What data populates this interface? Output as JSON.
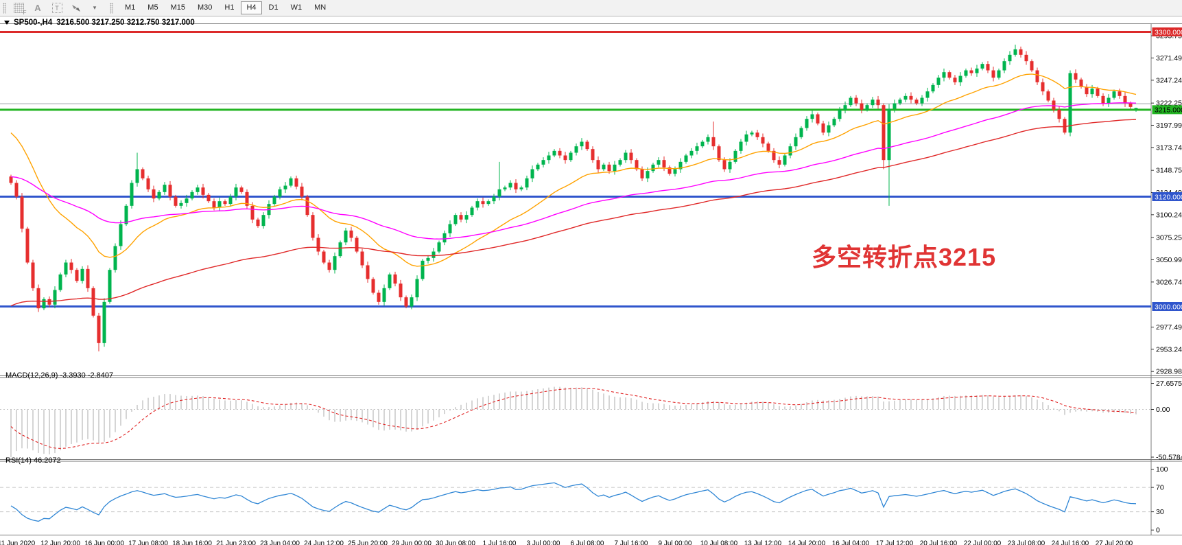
{
  "toolbar": {
    "icons": [
      {
        "name": "template-grid-icon",
        "letter": "F"
      },
      {
        "name": "font-icon",
        "letter": "A"
      },
      {
        "name": "text-label-icon",
        "letter": "T"
      },
      {
        "name": "cursor-arrows-icon",
        "letter": ""
      },
      {
        "name": "dropdown-arrow-icon",
        "letter": "▾"
      }
    ],
    "timeframes": [
      "M1",
      "M5",
      "M15",
      "M30",
      "H1",
      "H4",
      "D1",
      "W1",
      "MN"
    ],
    "active_timeframe": "H4"
  },
  "chart": {
    "symbol_timeframe": "SP500-,H4",
    "ohlc_text": "3216.500 3217.250 3212.750 3217.000",
    "annotation": {
      "text": "多空转折点3215",
      "color": "#e03434"
    }
  },
  "macd": {
    "label": "MACD(12,26,9) -3.3930 -2.8407"
  },
  "rsi": {
    "label": "RSI(14) 46.2072"
  },
  "chart_data": {
    "type": "candlestick",
    "symbol": "SP500-",
    "timeframe": "H4",
    "current_bar": {
      "open": 3216.5,
      "high": 3217.25,
      "low": 3212.75,
      "close": 3217.0
    },
    "y_axis": {
      "visible_range": [
        2928.985,
        3300.0
      ],
      "ticks": [
        "3295.750",
        "3271.495",
        "3247.240",
        "3222.250",
        "3197.995",
        "3173.740",
        "3148.750",
        "3124.495",
        "3100.240",
        "3075.250",
        "3050.995",
        "3026.740",
        "2977.495",
        "2953.240",
        "2928.985"
      ]
    },
    "x_axis": {
      "labels": [
        "11 Jun 2020",
        "12 Jun 20:00",
        "16 Jun 00:00",
        "17 Jun 08:00",
        "18 Jun 16:00",
        "21 Jun 23:00",
        "23 Jun 04:00",
        "24 Jun 12:00",
        "25 Jun 20:00",
        "29 Jun 00:00",
        "30 Jun 08:00",
        "1 Jul 16:00",
        "3 Jul 00:00",
        "6 Jul 08:00",
        "7 Jul 16:00",
        "9 Jul 00:00",
        "10 Jul 08:00",
        "13 Jul 12:00",
        "14 Jul 20:00",
        "16 Jul 04:00",
        "17 Jul 12:00",
        "20 Jul 16:00",
        "22 Jul 00:00",
        "23 Jul 08:00",
        "24 Jul 16:00",
        "27 Jul 20:00"
      ]
    },
    "horizontal_lines": [
      {
        "price": 3300.0,
        "label": "3300.000",
        "color": "#dc2a2a",
        "text_color": "#ffffff",
        "width": 3
      },
      {
        "price": 3221.5,
        "label": null,
        "color": "#9aa0a6",
        "text_color": null,
        "width": 1
      },
      {
        "price": 3215.0,
        "label": "3215.000",
        "color": "#23b423",
        "text_color": "#000000",
        "width": 3
      },
      {
        "price": 3120.0,
        "label": "3120.000",
        "color": "#2f55cc",
        "text_color": "#ffffff",
        "width": 3
      },
      {
        "price": 3000.0,
        "label": "3000.000",
        "color": "#2f55cc",
        "text_color": "#ffffff",
        "width": 3
      }
    ],
    "candles": {
      "first_open": 3142,
      "closes": [
        3135,
        3120,
        3085,
        3048,
        3020,
        2998,
        3008,
        3002,
        3018,
        3035,
        3048,
        3040,
        3028,
        3041,
        3020,
        2990,
        2960,
        3005,
        3040,
        3066,
        3090,
        3110,
        3135,
        3150,
        3140,
        3128,
        3118,
        3125,
        3133,
        3120,
        3110,
        3113,
        3118,
        3125,
        3130,
        3122,
        3115,
        3108,
        3115,
        3112,
        3120,
        3130,
        3125,
        3110,
        3095,
        3088,
        3100,
        3112,
        3120,
        3128,
        3132,
        3140,
        3131,
        3120,
        3100,
        3075,
        3060,
        3048,
        3040,
        3055,
        3070,
        3083,
        3075,
        3060,
        3045,
        3030,
        3015,
        3005,
        3020,
        3035,
        3025,
        3010,
        3000,
        3010,
        3030,
        3050,
        3053,
        3060,
        3070,
        3080,
        3090,
        3100,
        3095,
        3100,
        3108,
        3115,
        3112,
        3115,
        3120,
        3128,
        3130,
        3135,
        3128,
        3130,
        3140,
        3150,
        3155,
        3160,
        3165,
        3170,
        3165,
        3160,
        3168,
        3175,
        3180,
        3172,
        3160,
        3150,
        3155,
        3148,
        3155,
        3160,
        3168,
        3160,
        3150,
        3140,
        3148,
        3155,
        3160,
        3152,
        3145,
        3150,
        3158,
        3165,
        3170,
        3175,
        3180,
        3185,
        3175,
        3160,
        3150,
        3158,
        3170,
        3180,
        3188,
        3190,
        3185,
        3178,
        3170,
        3160,
        3155,
        3165,
        3175,
        3185,
        3195,
        3205,
        3210,
        3200,
        3190,
        3198,
        3205,
        3215,
        3220,
        3228,
        3222,
        3215,
        3220,
        3226,
        3220,
        3160,
        3216,
        3222,
        3226,
        3230,
        3226,
        3222,
        3228,
        3235,
        3242,
        3250,
        3256,
        3250,
        3245,
        3252,
        3258,
        3255,
        3260,
        3265,
        3258,
        3250,
        3258,
        3268,
        3275,
        3281,
        3275,
        3268,
        3258,
        3245,
        3235,
        3225,
        3215,
        3205,
        3190,
        3255,
        3248,
        3240,
        3232,
        3238,
        3230,
        3222,
        3228,
        3235,
        3230,
        3222,
        3218,
        3217
      ],
      "overrides": {
        "16": {
          "low": 2951
        },
        "23": {
          "high": 3168
        },
        "89": {
          "high": 3158
        },
        "128": {
          "high": 3202
        },
        "159": {
          "low": 3150
        },
        "160": {
          "low": 3110,
          "high": 3221
        },
        "183": {
          "high": 3286
        },
        "193": {
          "low": 3186
        },
        "205": {
          "open": 3216.5,
          "high": 3217.25,
          "low": 3212.75,
          "close": 3217.0
        }
      },
      "bull_color": "#00b44e",
      "bear_color": "#e62e2e"
    },
    "moving_averages": [
      {
        "name": "ma-fast",
        "color": "#ffa200",
        "period": 22,
        "seed": 3195
      },
      {
        "name": "ma-mid",
        "color": "#ff00ff",
        "period": 65,
        "seed": 3142
      },
      {
        "name": "ma-slow",
        "color": "#e02828",
        "period": 100,
        "seed": 2998
      }
    ],
    "indicators": [
      {
        "name": "MACD",
        "params": [
          12,
          26,
          9
        ],
        "current_values": [
          -3.393,
          -2.8407
        ],
        "scale_ticks": [
          "27.6575",
          "0.00",
          "-50.5784"
        ],
        "histogram_color": "#b9b9b9",
        "signal_color": "#e02020",
        "seeds": {
          "ema_fast": 3075,
          "ema_slow": 3135,
          "signal": -10
        }
      },
      {
        "name": "RSI",
        "params": [
          14
        ],
        "current_value": 46.2072,
        "scale_ticks": [
          "100",
          "70",
          "30",
          "0"
        ],
        "levels": [
          70,
          30
        ],
        "line_color": "#2f86d5",
        "seeds": {
          "avg_gain": 3,
          "avg_loss": 4
        }
      }
    ]
  },
  "scrollbar": {
    "thumb_from": 790,
    "thumb_to": 896
  }
}
